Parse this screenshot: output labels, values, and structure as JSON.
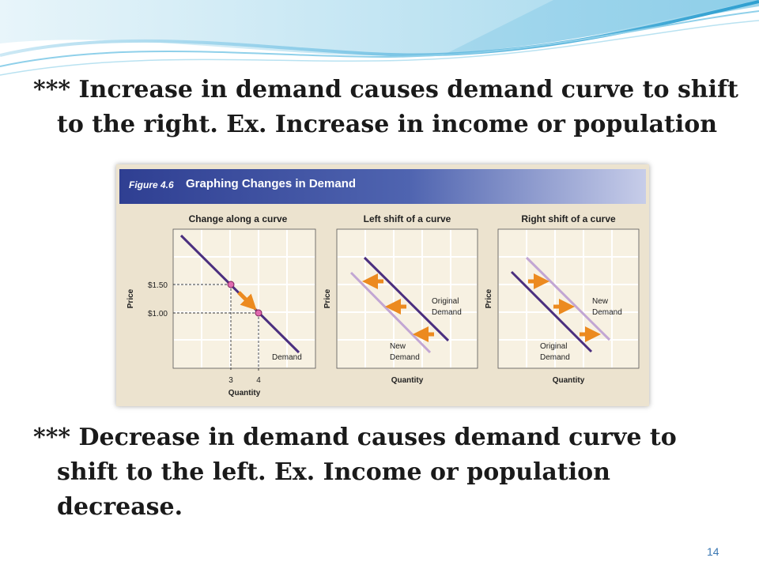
{
  "slide": {
    "bullet1": {
      "line1": "*** Increase in demand causes demand curve to shift",
      "line2": "to the right. Ex. Increase in income or population"
    },
    "bullet2": {
      "line1": "*** Decrease in demand causes demand curve to",
      "line2": "shift to the left. Ex. Income  or population",
      "line3": "decrease."
    },
    "page_number": "14"
  },
  "figure": {
    "number": "Figure 4.6",
    "title": "Graphing Changes in Demand",
    "panels": [
      {
        "title": "Change along a curve",
        "y_label": "Price",
        "x_label": "Quantity",
        "price_ticks": [
          "$1.50",
          "$1.00"
        ],
        "quantity_ticks": [
          "3",
          "4"
        ],
        "curve_label": "Demand"
      },
      {
        "title": "Left shift of a curve",
        "y_label": "Price",
        "x_label": "Quantity",
        "original_label": [
          "Original",
          "Demand"
        ],
        "new_label": [
          "New",
          "Demand"
        ]
      },
      {
        "title": "Right shift of a curve",
        "y_label": "Price",
        "x_label": "Quantity",
        "original_label": [
          "Original",
          "Demand"
        ],
        "new_label": [
          "New",
          "Demand"
        ]
      }
    ]
  },
  "colors": {
    "curve_dark": "#4b2f7f",
    "curve_light": "#c2a6d3",
    "arrow_orange": "#ec8a1f",
    "point_pink": "#e06ab0",
    "header_blue": "#2f3f92",
    "panel_bg": "#f7f1e2",
    "grid": "#ffffff"
  }
}
